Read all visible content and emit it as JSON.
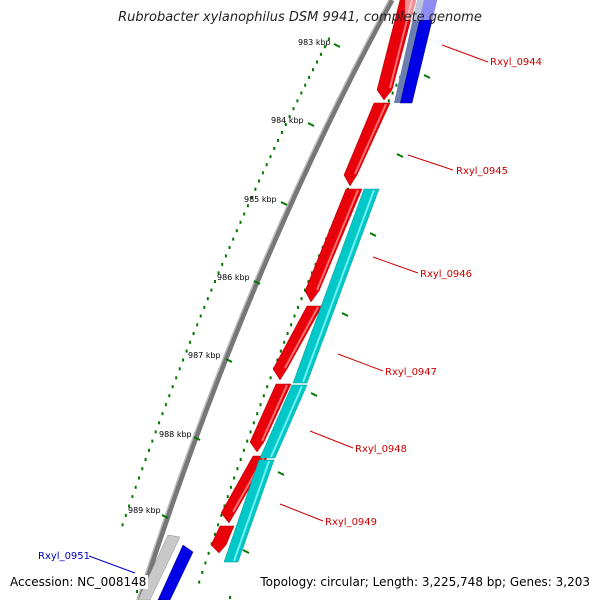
{
  "title": "Rubrobacter xylanophilus DSM 9941, complete genome",
  "footer": {
    "accession": "Accession: NC_008148",
    "summary": "Topology: circular; Length: 3,225,748 bp; Genes: 3,203"
  },
  "colors": {
    "forward_gene": "#e8000a",
    "reverse_gene": "#0000e6",
    "cds_cyan": "#00c8c8",
    "backbone": "#808080",
    "tick": "#007800",
    "label_forward": "#cc0000",
    "label_reverse": "#0000cc"
  },
  "scale_labels": [
    "983 kbp",
    "984 kbp",
    "985 kbp",
    "986 kbp",
    "987 kbp",
    "988 kbp",
    "989 kbp"
  ],
  "gene_labels": [
    {
      "text": "Rxyl_0944",
      "strand": "forward"
    },
    {
      "text": "Rxyl_0945",
      "strand": "forward"
    },
    {
      "text": "Rxyl_0946",
      "strand": "forward"
    },
    {
      "text": "Rxyl_0947",
      "strand": "forward"
    },
    {
      "text": "Rxyl_0948",
      "strand": "forward"
    },
    {
      "text": "Rxyl_0949",
      "strand": "forward"
    },
    {
      "text": "Rxyl_0951",
      "strand": "reverse"
    }
  ]
}
